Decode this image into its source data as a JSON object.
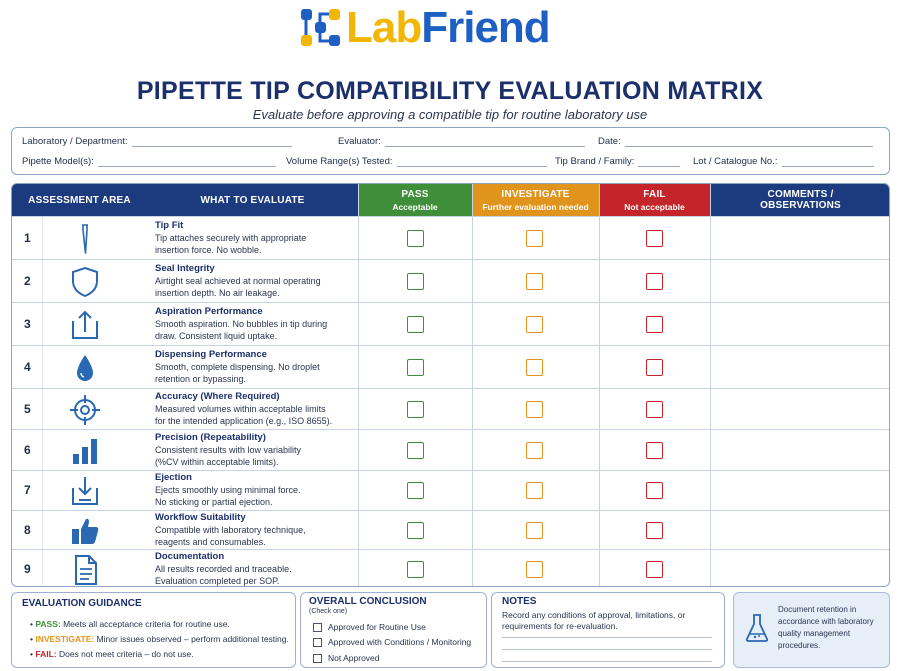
{
  "logo": {
    "part1": "Lab",
    "part2": "Friend"
  },
  "title": "PIPETTE TIP COMPATIBILITY EVALUATION MATRIX",
  "subtitle": "Evaluate before approving a compatible tip for routine laboratory use",
  "info_fields": {
    "lab": "Laboratory / Department:",
    "evaluator": "Evaluator:",
    "date": "Date:",
    "model": "Pipette Model(s):",
    "volume": "Volume Range(s) Tested:",
    "brand": "Tip Brand / Family:",
    "lot": "Lot / Catalogue No.:"
  },
  "headers": {
    "area": "ASSESSMENT AREA",
    "what": "WHAT TO EVALUATE",
    "pass": "PASS",
    "pass_sub": "Acceptable",
    "investigate": "INVESTIGATE",
    "investigate_sub": "Further evaluation needed",
    "fail": "FAIL",
    "fail_sub": "Not acceptable",
    "comments": "COMMENTS /",
    "comments2": "OBSERVATIONS"
  },
  "rows": [
    {
      "num": "1",
      "title": "Tip Fit",
      "d1": "Tip attaches securely with appropriate",
      "d2": "insertion force. No wobble.",
      "icon": "pipette-tip-icon"
    },
    {
      "num": "2",
      "title": "Seal Integrity",
      "d1": "Airtight seal achieved at normal operating",
      "d2": "insertion depth. No air leakage.",
      "icon": "shield-icon"
    },
    {
      "num": "3",
      "title": "Aspiration Performance",
      "d1": "Smooth aspiration. No bubbles in tip during",
      "d2": "draw. Consistent liquid uptake.",
      "icon": "upload-tray-icon"
    },
    {
      "num": "4",
      "title": "Dispensing Performance",
      "d1": "Smooth, complete dispensing. No droplet",
      "d2": "retention or bypassing.",
      "icon": "droplet-icon"
    },
    {
      "num": "5",
      "title": "Accuracy (Where Required)",
      "d1": "Measured volumes within acceptable limits",
      "d2": "for the intended application (e.g., ISO 8655).",
      "icon": "target-icon"
    },
    {
      "num": "6",
      "title": "Precision (Repeatability)",
      "d1": "Consistent results with low variability",
      "d2": "(%CV within acceptable limits).",
      "icon": "bar-chart-icon"
    },
    {
      "num": "7",
      "title": "Ejection",
      "d1": "Ejects smoothly using minimal force.",
      "d2": "No sticking or partial ejection.",
      "icon": "eject-tray-icon"
    },
    {
      "num": "8",
      "title": "Workflow Suitability",
      "d1": "Compatible with laboratory technique,",
      "d2": "reagents and consumables.",
      "icon": "thumbs-up-icon"
    },
    {
      "num": "9",
      "title": "Documentation",
      "d1": "All results recorded and traceable.",
      "d2": "Evaluation completed per SOP.",
      "icon": "document-icon"
    }
  ],
  "guidance": {
    "title": "EVALUATION GUIDANCE",
    "pass_label": "PASS:",
    "pass_text": " Meets all acceptance criteria for routine use.",
    "inv_label": "INVESTIGATE:",
    "inv_text": " Minor issues observed – perform additional testing.",
    "fail_label": "FAIL:",
    "fail_text": " Does not meet criteria – do not use."
  },
  "conclusion": {
    "title": "OVERALL CONCLUSION",
    "sub": "(Check one)",
    "opt1": "Approved for Routine Use",
    "opt2": "Approved with Conditions / Monitoring",
    "opt3": "Not Approved"
  },
  "notes": {
    "title": "NOTES",
    "l1": "Record any conditions of approval, limitations, or",
    "l2": "requirements for re-evaluation."
  },
  "retention": {
    "l1": "Document retention in",
    "l2": "accordance with laboratory",
    "l3": "quality management",
    "l4": "procedures."
  },
  "colors": {
    "navy": "#1c3b7e",
    "pass": "#3f8f3a",
    "investigate": "#e0941c",
    "fail": "#c4252b",
    "icon": "#2a68b3"
  }
}
